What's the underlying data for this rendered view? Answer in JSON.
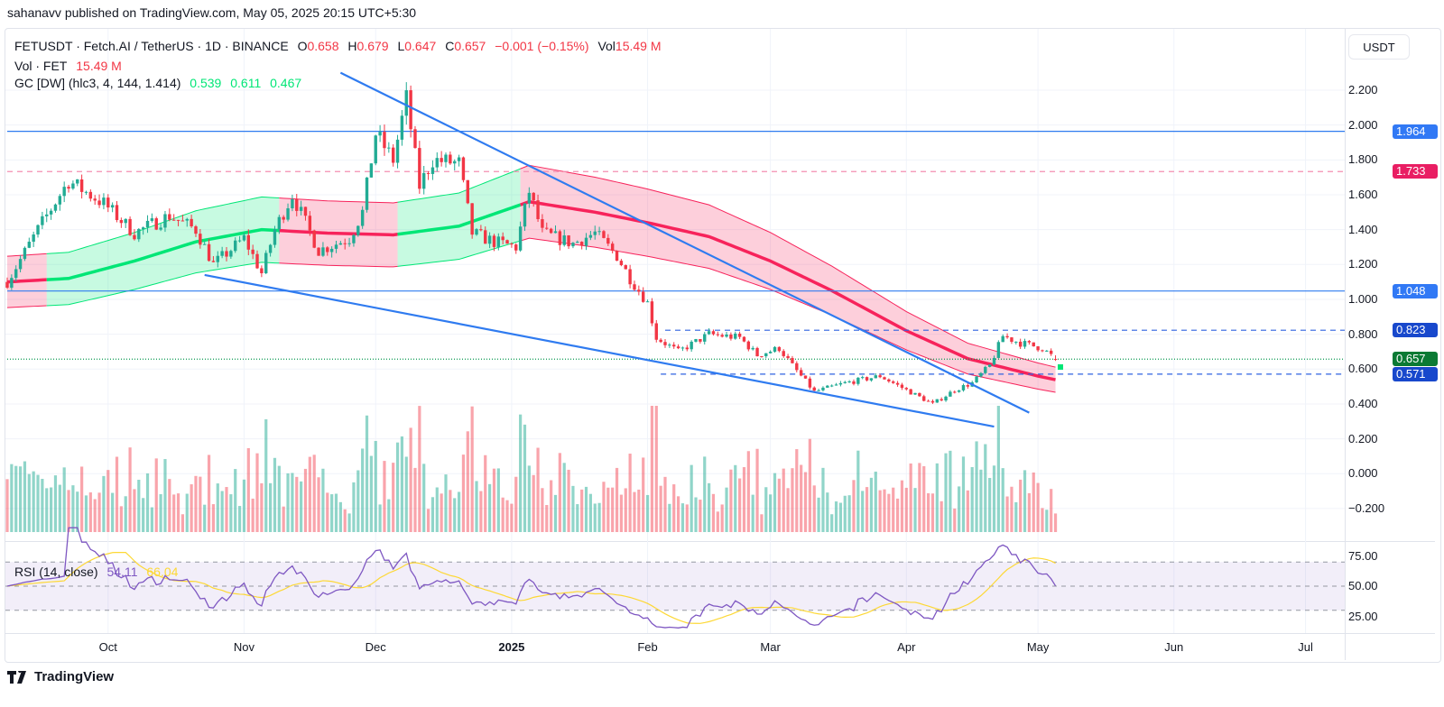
{
  "publisher": "sahanavv published on TradingView.com, May 05, 2025 20:15 UTC+5:30",
  "legend": {
    "symbol": "FETUSDT · Fetch.AI / TetherUS · 1D · BINANCE",
    "o_label": "O",
    "o": "0.658",
    "h_label": "H",
    "h": "0.679",
    "l_label": "L",
    "l": "0.647",
    "c_label": "C",
    "c": "0.657",
    "change": "−0.001 (−0.15%)",
    "vol_label": "Vol",
    "vol": "15.49 M",
    "vol_row_label": "Vol · FET",
    "vol_row_value": "15.49 M",
    "gc_label": "GC [DW] (hlc3, 4, 144, 1.414)",
    "gc_values": [
      "0.539",
      "0.611",
      "0.467"
    ],
    "rsi_label": "RSI (14, close)",
    "rsi_value": "54.11",
    "rsi_ma_value": "66.04"
  },
  "currency_button": "USDT",
  "footer_brand": "TradingView",
  "colors": {
    "up": "#22ab94",
    "down": "#f23645",
    "gc_green": "#00e676",
    "gc_red": "#f7235b",
    "trend": "#2f7bf0",
    "rsi": "#7e57c2",
    "rsi_ma": "#fdd835"
  },
  "chart_data": {
    "type": "candlestick",
    "symbol": "FETUSDT",
    "timeframe": "1D",
    "start_date": "2024-09-08",
    "end_date": "2025-05-05",
    "last_candle": {
      "open": 0.658,
      "high": 0.679,
      "low": 0.647,
      "close": 0.657
    },
    "close_keypoints": [
      [
        "2024-09-08",
        1.1
      ],
      [
        "2024-09-15",
        1.4
      ],
      [
        "2024-09-22",
        1.68
      ],
      [
        "2024-09-30",
        1.55
      ],
      [
        "2024-10-07",
        1.38
      ],
      [
        "2024-10-15",
        1.48
      ],
      [
        "2024-10-21",
        1.4
      ],
      [
        "2024-10-25",
        1.2
      ],
      [
        "2024-11-01",
        1.35
      ],
      [
        "2024-11-05",
        1.15
      ],
      [
        "2024-11-08",
        1.4
      ],
      [
        "2024-11-12",
        1.6
      ],
      [
        "2024-11-18",
        1.28
      ],
      [
        "2024-11-25",
        1.35
      ],
      [
        "2024-11-28",
        1.5
      ],
      [
        "2024-12-01",
        1.95
      ],
      [
        "2024-12-05",
        1.8
      ],
      [
        "2024-12-08",
        2.15
      ],
      [
        "2024-12-11",
        1.65
      ],
      [
        "2024-12-14",
        1.8
      ],
      [
        "2024-12-20",
        1.78
      ],
      [
        "2024-12-23",
        1.38
      ],
      [
        "2024-12-28",
        1.33
      ],
      [
        "2025-01-02",
        1.3
      ],
      [
        "2025-01-05",
        1.62
      ],
      [
        "2025-01-08",
        1.38
      ],
      [
        "2025-01-15",
        1.32
      ],
      [
        "2025-01-20",
        1.38
      ],
      [
        "2025-01-25",
        1.25
      ],
      [
        "2025-01-28",
        1.12
      ],
      [
        "2025-02-01",
        0.98
      ],
      [
        "2025-02-03",
        0.78
      ],
      [
        "2025-02-08",
        0.7
      ],
      [
        "2025-02-15",
        0.8
      ],
      [
        "2025-02-22",
        0.78
      ],
      [
        "2025-02-26",
        0.68
      ],
      [
        "2025-03-03",
        0.72
      ],
      [
        "2025-03-06",
        0.62
      ],
      [
        "2025-03-11",
        0.47
      ],
      [
        "2025-03-18",
        0.52
      ],
      [
        "2025-03-26",
        0.56
      ],
      [
        "2025-04-01",
        0.48
      ],
      [
        "2025-04-07",
        0.4
      ],
      [
        "2025-04-12",
        0.48
      ],
      [
        "2025-04-16",
        0.52
      ],
      [
        "2025-04-20",
        0.62
      ],
      [
        "2025-04-23",
        0.79
      ],
      [
        "2025-04-27",
        0.75
      ],
      [
        "2025-05-02",
        0.72
      ],
      [
        "2025-05-05",
        0.657
      ]
    ],
    "gc_center_keypoints": [
      [
        "2024-09-08",
        1.1
      ],
      [
        "2024-09-22",
        1.12
      ],
      [
        "2024-10-07",
        1.22
      ],
      [
        "2024-10-21",
        1.33
      ],
      [
        "2024-11-05",
        1.4
      ],
      [
        "2024-11-20",
        1.38
      ],
      [
        "2024-12-05",
        1.37
      ],
      [
        "2024-12-20",
        1.42
      ],
      [
        "2025-01-05",
        1.56
      ],
      [
        "2025-01-20",
        1.5
      ],
      [
        "2025-02-01",
        1.44
      ],
      [
        "2025-02-15",
        1.36
      ],
      [
        "2025-03-01",
        1.22
      ],
      [
        "2025-03-15",
        1.05
      ],
      [
        "2025-04-01",
        0.82
      ],
      [
        "2025-04-15",
        0.66
      ],
      [
        "2025-05-01",
        0.56
      ],
      [
        "2025-05-05",
        0.539
      ]
    ],
    "gc_band_ratio": 0.134,
    "gc_segments": [
      {
        "from": "2024-09-08",
        "to": "2024-09-17",
        "trend": "down"
      },
      {
        "from": "2024-09-17",
        "to": "2024-11-09",
        "trend": "up"
      },
      {
        "from": "2024-11-09",
        "to": "2024-12-06",
        "trend": "down"
      },
      {
        "from": "2024-12-06",
        "to": "2025-01-03",
        "trend": "up"
      },
      {
        "from": "2025-01-03",
        "to": "2025-05-05",
        "trend": "down"
      }
    ],
    "trendlines": [
      {
        "name": "upper-trendline",
        "p1": [
          "2024-11-23",
          2.3
        ],
        "p2": [
          "2025-04-29",
          0.35
        ]
      },
      {
        "name": "lower-trendline",
        "p1": [
          "2024-10-23",
          1.14
        ],
        "p2": [
          "2025-04-21",
          0.27
        ]
      }
    ],
    "horizontal_levels": [
      {
        "value": 1.964,
        "label": "1.964",
        "style": "solid",
        "color": "#2f7bf0",
        "label_bg": "#3179f5",
        "from": "2024-09-08"
      },
      {
        "value": 1.733,
        "label": "1.733",
        "style": "dashed",
        "color": "#f48fb1",
        "label_bg": "#e91e63",
        "from": "2024-09-08"
      },
      {
        "value": 1.048,
        "label": "1.048",
        "style": "solid",
        "color": "#2f7bf0",
        "label_bg": "#3179f5",
        "from": "2024-09-08"
      },
      {
        "value": 0.823,
        "label": "0.823",
        "style": "dashed",
        "color": "#2f62e0",
        "label_bg": "#1848cc",
        "from": "2025-02-05"
      },
      {
        "value": 0.657,
        "label": "0.657",
        "style": "dotted",
        "color": "#089950",
        "label_bg": "#0b7a34",
        "from": "2024-09-08"
      },
      {
        "value": 0.571,
        "label": "0.571",
        "style": "dashed",
        "color": "#2f62e0",
        "label_bg": "#1848cc",
        "from": "2025-02-04"
      }
    ],
    "price_ticks": [
      "2.200",
      "2.000",
      "1.800",
      "1.600",
      "1.400",
      "1.200",
      "1.000",
      "0.800",
      "0.600",
      "0.400",
      "0.200",
      "0.000",
      "−0.200"
    ],
    "price_tick_values": [
      2.2,
      2.0,
      1.8,
      1.6,
      1.4,
      1.2,
      1.0,
      0.8,
      0.6,
      0.4,
      0.2,
      0.0,
      -0.2
    ],
    "rsi_ticks": [
      "75.00",
      "50.00",
      "25.00"
    ],
    "rsi_tick_values": [
      75,
      50,
      25
    ],
    "rsi_bands": [
      70,
      50,
      30
    ],
    "time_ticks": [
      {
        "label": "Oct",
        "date": "2024-10-01",
        "bold": false
      },
      {
        "label": "Nov",
        "date": "2024-11-01",
        "bold": false
      },
      {
        "label": "Dec",
        "date": "2024-12-01",
        "bold": false
      },
      {
        "label": "2025",
        "date": "2025-01-01",
        "bold": true
      },
      {
        "label": "Feb",
        "date": "2025-02-01",
        "bold": false
      },
      {
        "label": "Mar",
        "date": "2025-03-01",
        "bold": false
      },
      {
        "label": "Apr",
        "date": "2025-04-01",
        "bold": false
      },
      {
        "label": "May",
        "date": "2025-05-01",
        "bold": false
      },
      {
        "label": "Jun",
        "date": "2025-06-01",
        "bold": false
      },
      {
        "label": "Jul",
        "date": "2025-07-01",
        "bold": false
      }
    ],
    "ylim": [
      -0.2,
      2.2
    ],
    "rsi_ylim": [
      25,
      75
    ]
  }
}
